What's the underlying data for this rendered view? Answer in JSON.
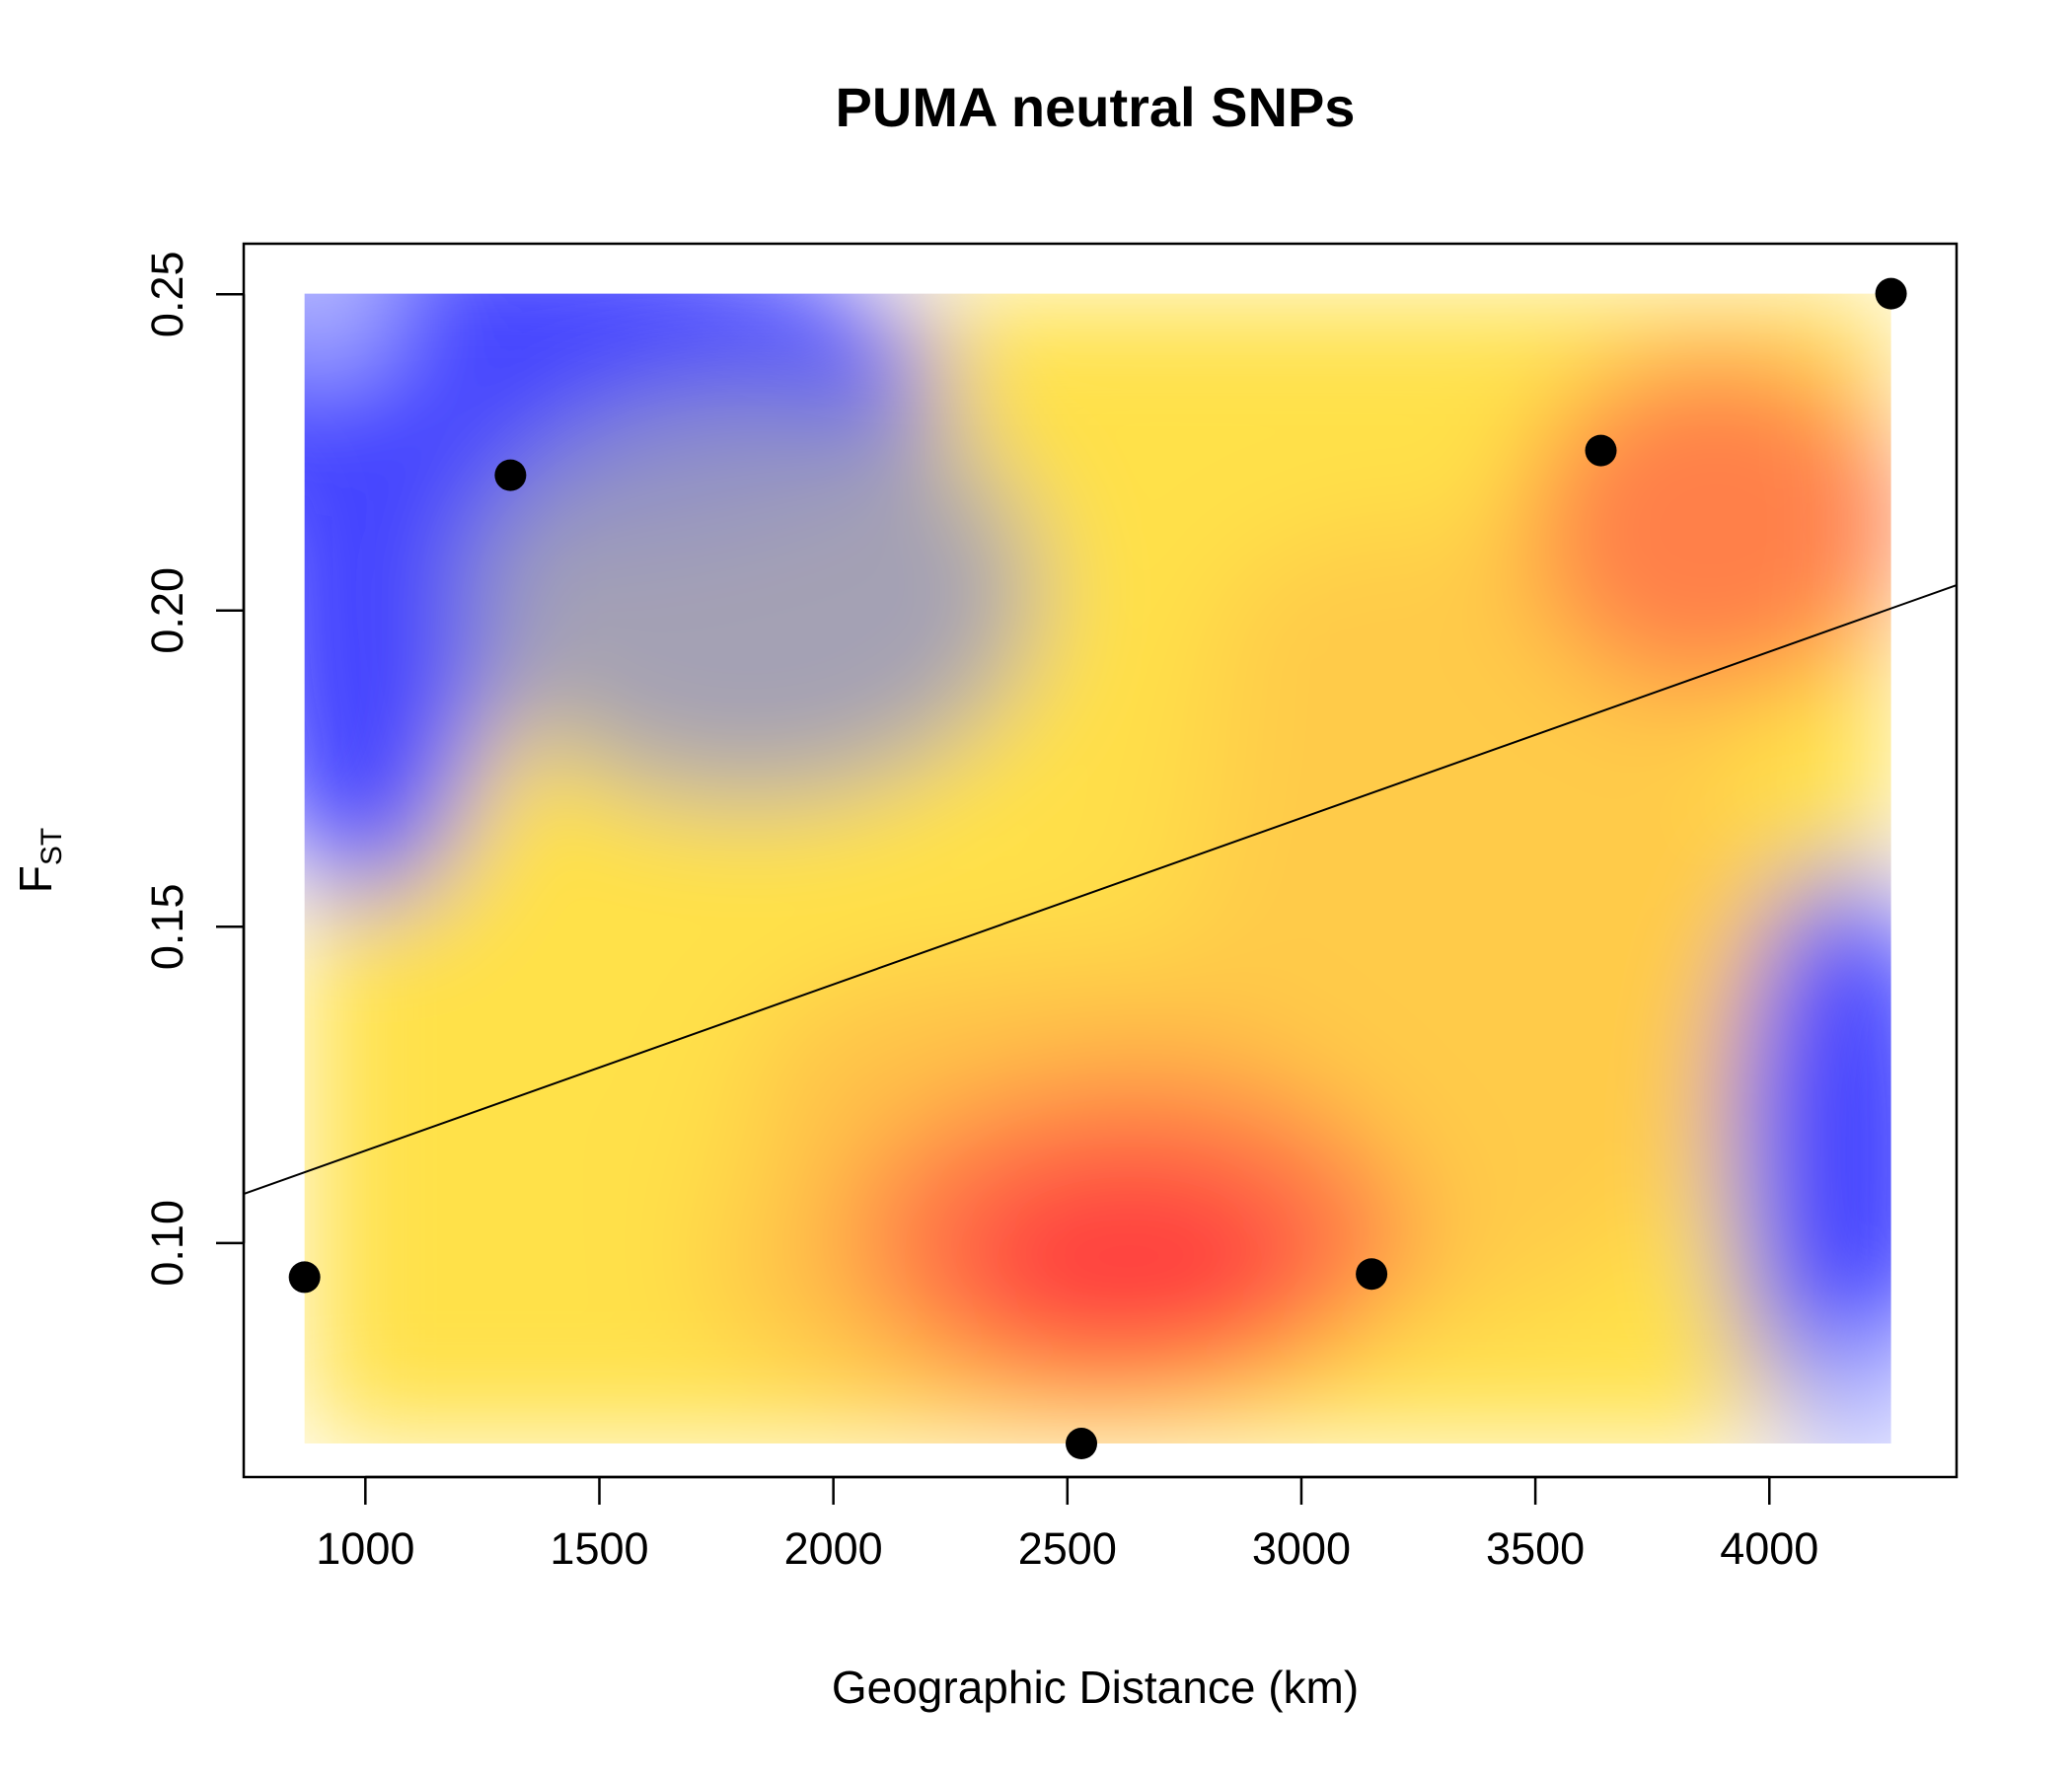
{
  "chart_data": {
    "type": "scatter",
    "title": "PUMA neutral SNPs",
    "xlabel": "Geographic Distance (km)",
    "ylabel": {
      "main": "F",
      "sub": "ST"
    },
    "xlim": [
      740,
      4400
    ],
    "ylim": [
      0.063,
      0.258
    ],
    "xticks": [
      1000,
      1500,
      2000,
      2500,
      3000,
      3500,
      4000
    ],
    "yticks": [
      0.1,
      0.15,
      0.2,
      0.25
    ],
    "xtick_labels": [
      "1000",
      "1500",
      "2000",
      "2500",
      "3000",
      "3500",
      "4000"
    ],
    "ytick_labels": [
      "0.10",
      "0.15",
      "0.20",
      "0.25"
    ],
    "points": [
      {
        "x": 870,
        "y": 0.0946
      },
      {
        "x": 1310,
        "y": 0.2214
      },
      {
        "x": 2530,
        "y": 0.0683
      },
      {
        "x": 3150,
        "y": 0.0951
      },
      {
        "x": 3640,
        "y": 0.2253
      },
      {
        "x": 4260,
        "y": 0.2501
      }
    ],
    "regression_line": {
      "intercept": 0.0883,
      "slope": 2.63e-05
    },
    "density_surface": {
      "x_range": [
        870,
        4260
      ],
      "y_range": [
        0.0683,
        0.2501
      ],
      "palette": [
        "#b8bcff",
        "#4444ff",
        "#ffe14a",
        "#ff7a4a",
        "#ff4040"
      ]
    },
    "grid": false,
    "legend": "none"
  }
}
